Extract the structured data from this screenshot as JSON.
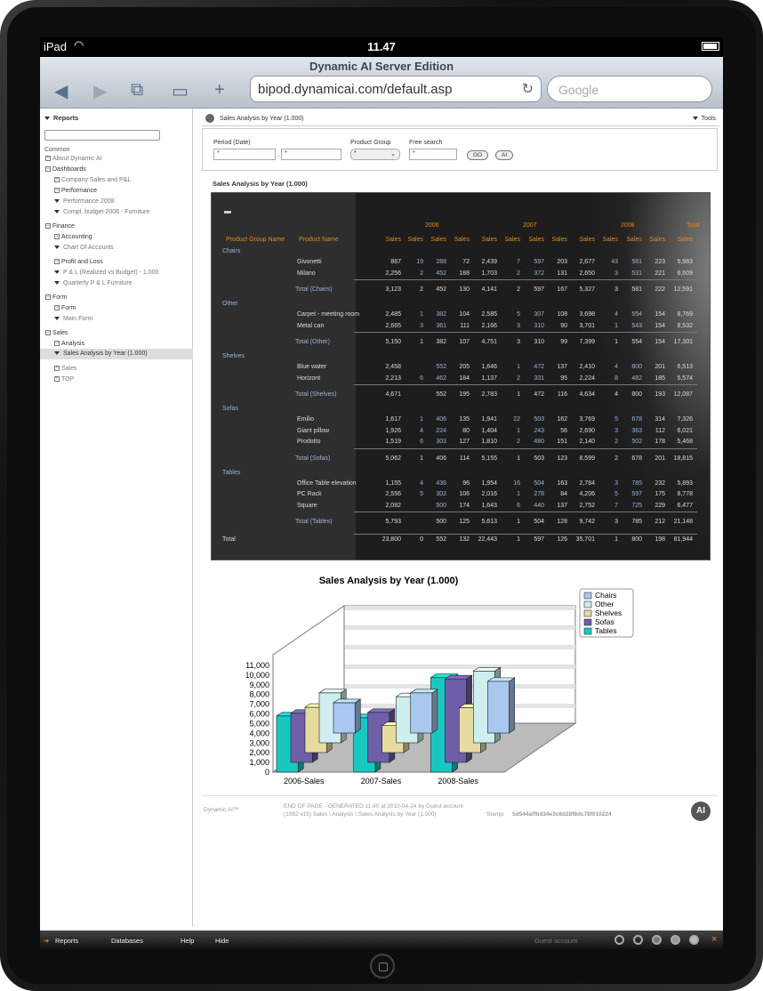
{
  "statusbar": {
    "device": "iPad",
    "time": "11.47"
  },
  "browser": {
    "title": "Dynamic AI Server Edition",
    "url": "bipod.dynamicai.com/default.asp",
    "search_placeholder": "Google"
  },
  "sidebar": {
    "header": "Reports",
    "common": "Common",
    "about": "About Dynamic AI",
    "dashboards": "Dashboards",
    "company_sales": "Company Sales and P&L",
    "performance": "Performance",
    "performance_2008": "Performance 2008",
    "compl_budget": "Compl. budget 2008 - Furniture",
    "finance": "Finance",
    "accounting": "Accounting",
    "chart_accounts": "Chart Of Accounts",
    "profit_loss": "Profit and Loss",
    "pl_realized": "P & L (Realized vs Budget) - 1.000",
    "quarterly": "Quarterly P & L Furniture",
    "form_group": "Form",
    "form": "Form",
    "main_form": "Main Form",
    "sales": "Sales",
    "analysis": "Analysis",
    "sales_analysis": "Sales Analysis by Year (1.000)",
    "sales2": "Sales",
    "top": "TOP"
  },
  "main": {
    "crumb": "Sales Analysis by Year (1.000)",
    "tools": "Tools",
    "period_label": "Period (Date)",
    "period_from": "*",
    "period_sep": "..",
    "period_to": "*",
    "group_label": "Product Group",
    "group_value": "*",
    "free_label": "Free search",
    "free_value": "*",
    "go": "GO",
    "ai": "AI",
    "report_title": "Sales Analysis by Year (1.000)"
  },
  "table": {
    "years": [
      "2006",
      "2007",
      "2008",
      "Total"
    ],
    "col_group": "Product Group Name",
    "col_name": "Product Name",
    "col_sales": "Sales",
    "groups": [
      {
        "name": "Chairs",
        "rows": [
          [
            "Givonetti",
            "867",
            "19",
            "288",
            "72",
            "2,439",
            "7",
            "597",
            "203",
            "2,677",
            "43",
            "581",
            "223",
            "5,983"
          ],
          [
            "Milano",
            "2,256",
            "2",
            "452",
            "188",
            "1,703",
            "2",
            "372",
            "131",
            "2,650",
            "3",
            "531",
            "221",
            "6,609"
          ]
        ],
        "total": [
          "Total (Chairs)",
          "3,123",
          "2",
          "452",
          "130",
          "4,141",
          "2",
          "597",
          "167",
          "5,327",
          "3",
          "581",
          "222",
          "12,591"
        ]
      },
      {
        "name": "Other",
        "rows": [
          [
            "Carpet - meeting room",
            "2,485",
            "1",
            "382",
            "104",
            "2,585",
            "5",
            "307",
            "108",
            "3,698",
            "4",
            "554",
            "154",
            "8,769"
          ],
          [
            "Metal can",
            "2,665",
            "3",
            "361",
            "111",
            "2,166",
            "3",
            "310",
            "90",
            "3,701",
            "1",
            "543",
            "154",
            "8,532"
          ]
        ],
        "total": [
          "Total (Other)",
          "5,150",
          "1",
          "382",
          "107",
          "4,751",
          "3",
          "310",
          "99",
          "7,399",
          "1",
          "554",
          "154",
          "17,301"
        ]
      },
      {
        "name": "Shelves",
        "rows": [
          [
            "Blue water",
            "2,458",
            "",
            "552",
            "205",
            "1,646",
            "1",
            "472",
            "137",
            "2,410",
            "4",
            "800",
            "201",
            "6,513"
          ],
          [
            "Horizont",
            "2,213",
            "6",
            "462",
            "184",
            "1,137",
            "2",
            "331",
            "95",
            "2,224",
            "8",
            "482",
            "185",
            "5,574"
          ]
        ],
        "total": [
          "Total (Shelves)",
          "4,671",
          "",
          "552",
          "195",
          "2,783",
          "1",
          "472",
          "116",
          "4,634",
          "4",
          "800",
          "193",
          "12,087"
        ]
      },
      {
        "name": "Sofas",
        "rows": [
          [
            "Emilio",
            "1,617",
            "1",
            "406",
            "135",
            "1,941",
            "22",
            "503",
            "162",
            "3,769",
            "5",
            "678",
            "314",
            "7,326"
          ],
          [
            "Giant pillow",
            "1,926",
            "4",
            "224",
            "80",
            "1,404",
            "1",
            "243",
            "56",
            "2,690",
            "3",
            "363",
            "112",
            "6,021"
          ],
          [
            "Prodotto",
            "1,519",
            "6",
            "303",
            "127",
            "1,810",
            "2",
            "480",
            "151",
            "2,140",
            "2",
            "502",
            "178",
            "5,468"
          ]
        ],
        "total": [
          "Total (Sofas)",
          "5,062",
          "1",
          "406",
          "114",
          "5,155",
          "1",
          "503",
          "123",
          "8,599",
          "2",
          "678",
          "201",
          "18,815"
        ]
      },
      {
        "name": "Tables",
        "rows": [
          [
            "Office Table elevation",
            "1,155",
            "4",
            "436",
            "96",
            "1,954",
            "16",
            "504",
            "163",
            "2,784",
            "3",
            "785",
            "232",
            "5,893"
          ],
          [
            "PC Rack",
            "2,556",
            "5",
            "302",
            "106",
            "2,016",
            "1",
            "278",
            "84",
            "4,206",
            "5",
            "597",
            "175",
            "8,778"
          ],
          [
            "Square",
            "2,082",
            "",
            "500",
            "174",
            "1,643",
            "6",
            "440",
            "137",
            "2,752",
            "7",
            "725",
            "229",
            "6,477"
          ]
        ],
        "total": [
          "Total (Tables)",
          "5,793",
          "",
          "500",
          "125",
          "5,613",
          "1",
          "504",
          "128",
          "9,742",
          "3",
          "785",
          "212",
          "21,148"
        ]
      }
    ],
    "grand": [
      "Total",
      "23,800",
      "0",
      "552",
      "132",
      "22,443",
      "1",
      "597",
      "126",
      "35,701",
      "1",
      "800",
      "198",
      "81,944"
    ]
  },
  "chart_data": {
    "type": "bar",
    "title": "Sales Analysis by Year (1.000)",
    "categories": [
      "2006-Sales",
      "2007-Sales",
      "2008-Sales"
    ],
    "series": [
      {
        "name": "Chairs",
        "color": "#a8c8f0",
        "values": [
          3123,
          4141,
          5327
        ]
      },
      {
        "name": "Other",
        "color": "#cfeef0",
        "values": [
          5150,
          4751,
          7399
        ]
      },
      {
        "name": "Shelves",
        "color": "#e6dca0",
        "values": [
          4671,
          2783,
          4634
        ]
      },
      {
        "name": "Sofas",
        "color": "#6e5fa8",
        "values": [
          5062,
          5155,
          8599
        ]
      },
      {
        "name": "Tables",
        "color": "#18c8c0",
        "values": [
          5793,
          5613,
          9742
        ]
      }
    ],
    "yticks": [
      "0",
      "1,000",
      "2,000",
      "3,000",
      "4,000",
      "5,000",
      "6,000",
      "7,000",
      "8,000",
      "9,000",
      "10,000",
      "11,000"
    ],
    "ylim": [
      0,
      11000
    ]
  },
  "footer": {
    "brand": "Dynamic AI™",
    "line1": "END OF PAGE - GENERATED 11:40 at 2010-04-24 by Guest account",
    "line2": "(1082 v15) Sales \\ Analysis \\ Sales Analysis by Year (1.000)",
    "stamp_label": "Stamp:",
    "stamp": "5d544affbd34e3c8d28f8dc78f010224",
    "logo": "AI"
  },
  "bottombar": {
    "reports": "Reports",
    "databases": "Databases",
    "help": "Help",
    "hide": "Hide",
    "account": "Guest account",
    "close": "×"
  }
}
